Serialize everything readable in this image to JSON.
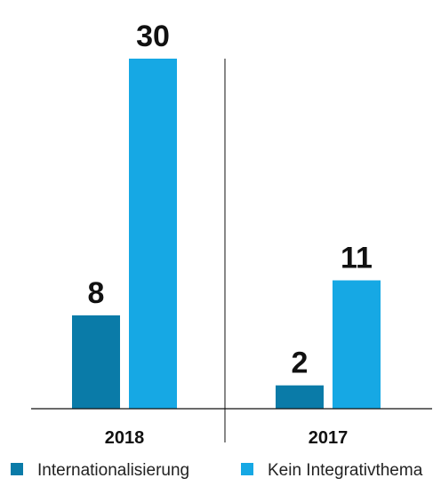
{
  "chart_data": {
    "type": "bar",
    "categories": [
      "2018",
      "2017"
    ],
    "series": [
      {
        "name": "Internationalisierung",
        "values": [
          8,
          2
        ],
        "color": "#0A7BA8"
      },
      {
        "name": "Kein Integrativthema",
        "values": [
          30,
          11
        ],
        "color": "#16A8E4"
      }
    ],
    "ylim": [
      0,
      30
    ],
    "grid": false,
    "legend_position": "bottom"
  }
}
